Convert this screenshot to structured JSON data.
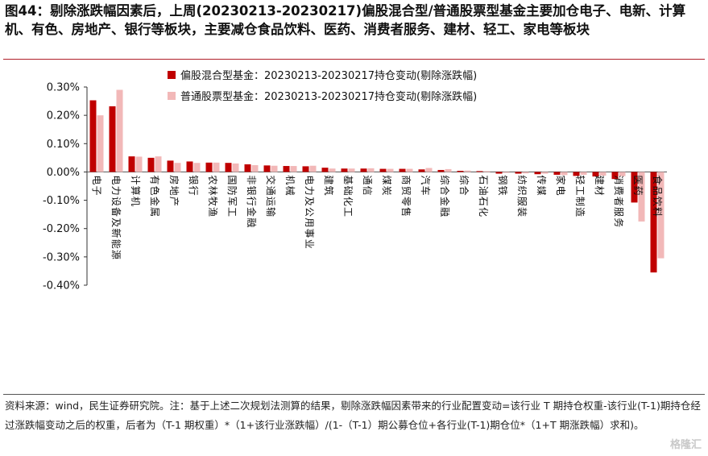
{
  "figure": {
    "title": "图44：剔除涨跌幅因素后，上周(20230213-20230217)偏股混合型/普通股票型基金主要加仓电子、电新、计算机、有色、房地产、银行等板块，主要减仓食品饮料、医药、消费者服务、建材、轻工、家电等板块",
    "source_note": "资料来源：wind，民生证券研究院。注：基于上述二次规划法测算的结果，剔除涨跌幅因素带来的行业配置变动=该行业 T 期持仓权重-该行业(T-1)期持仓经过涨跌幅变动之后的权重，后者为（T-1 期权重）*（1+该行业涨跌幅）/(1-（T-1）期公募仓位+各行业(T-1)期仓位*（1+T 期涨跌幅）求和)。",
    "watermark": "格隆汇"
  },
  "chart_data": {
    "type": "bar",
    "categories": [
      "电子",
      "电力设备及新能源",
      "计算机",
      "有色金属",
      "房地产",
      "银行",
      "农林牧渔",
      "国防军工",
      "非银行金融",
      "交通运输",
      "机械",
      "电力及公用事业",
      "建筑",
      "基础化工",
      "通信",
      "煤炭",
      "商贸零售",
      "汽车",
      "综合金融",
      "综合",
      "石油石化",
      "钢铁",
      "纺织服装",
      "传媒",
      "家电",
      "轻工制造",
      "建材",
      "消费者服务",
      "医药",
      "食品饮料"
    ],
    "series": [
      {
        "name": "偏股混合型基金：20230213-20230217持仓变动(剔除涨跌幅)",
        "color": "#c00000",
        "values": [
          0.253,
          0.232,
          0.055,
          0.05,
          0.04,
          0.037,
          0.033,
          0.032,
          0.027,
          0.023,
          0.021,
          0.02,
          0.015,
          0.012,
          0.012,
          0.011,
          0.011,
          0.009,
          0.007,
          0.004,
          0.003,
          -0.006,
          -0.006,
          -0.008,
          -0.01,
          -0.014,
          -0.016,
          -0.025,
          -0.108,
          -0.355
        ]
      },
      {
        "name": "普通股票型基金：20230213-20230217持仓变动(剔除涨跌幅)",
        "color": "#f2b8b8",
        "values": [
          0.2,
          0.29,
          0.054,
          0.055,
          0.032,
          0.032,
          0.033,
          0.03,
          0.024,
          0.022,
          0.021,
          0.022,
          0.012,
          0.012,
          0.013,
          0.011,
          0.011,
          0.014,
          0.01,
          0.005,
          0.003,
          -0.003,
          -0.005,
          -0.006,
          -0.011,
          -0.01,
          -0.013,
          -0.015,
          -0.175,
          -0.305
        ]
      }
    ],
    "yticks": [
      "0.30%",
      "0.20%",
      "0.10%",
      "0.00%",
      "-0.10%",
      "-0.20%",
      "-0.30%",
      "-0.40%"
    ],
    "ylim": [
      -0.4,
      0.3
    ],
    "unit": "%",
    "grid": false,
    "legend_position": "top-center"
  }
}
